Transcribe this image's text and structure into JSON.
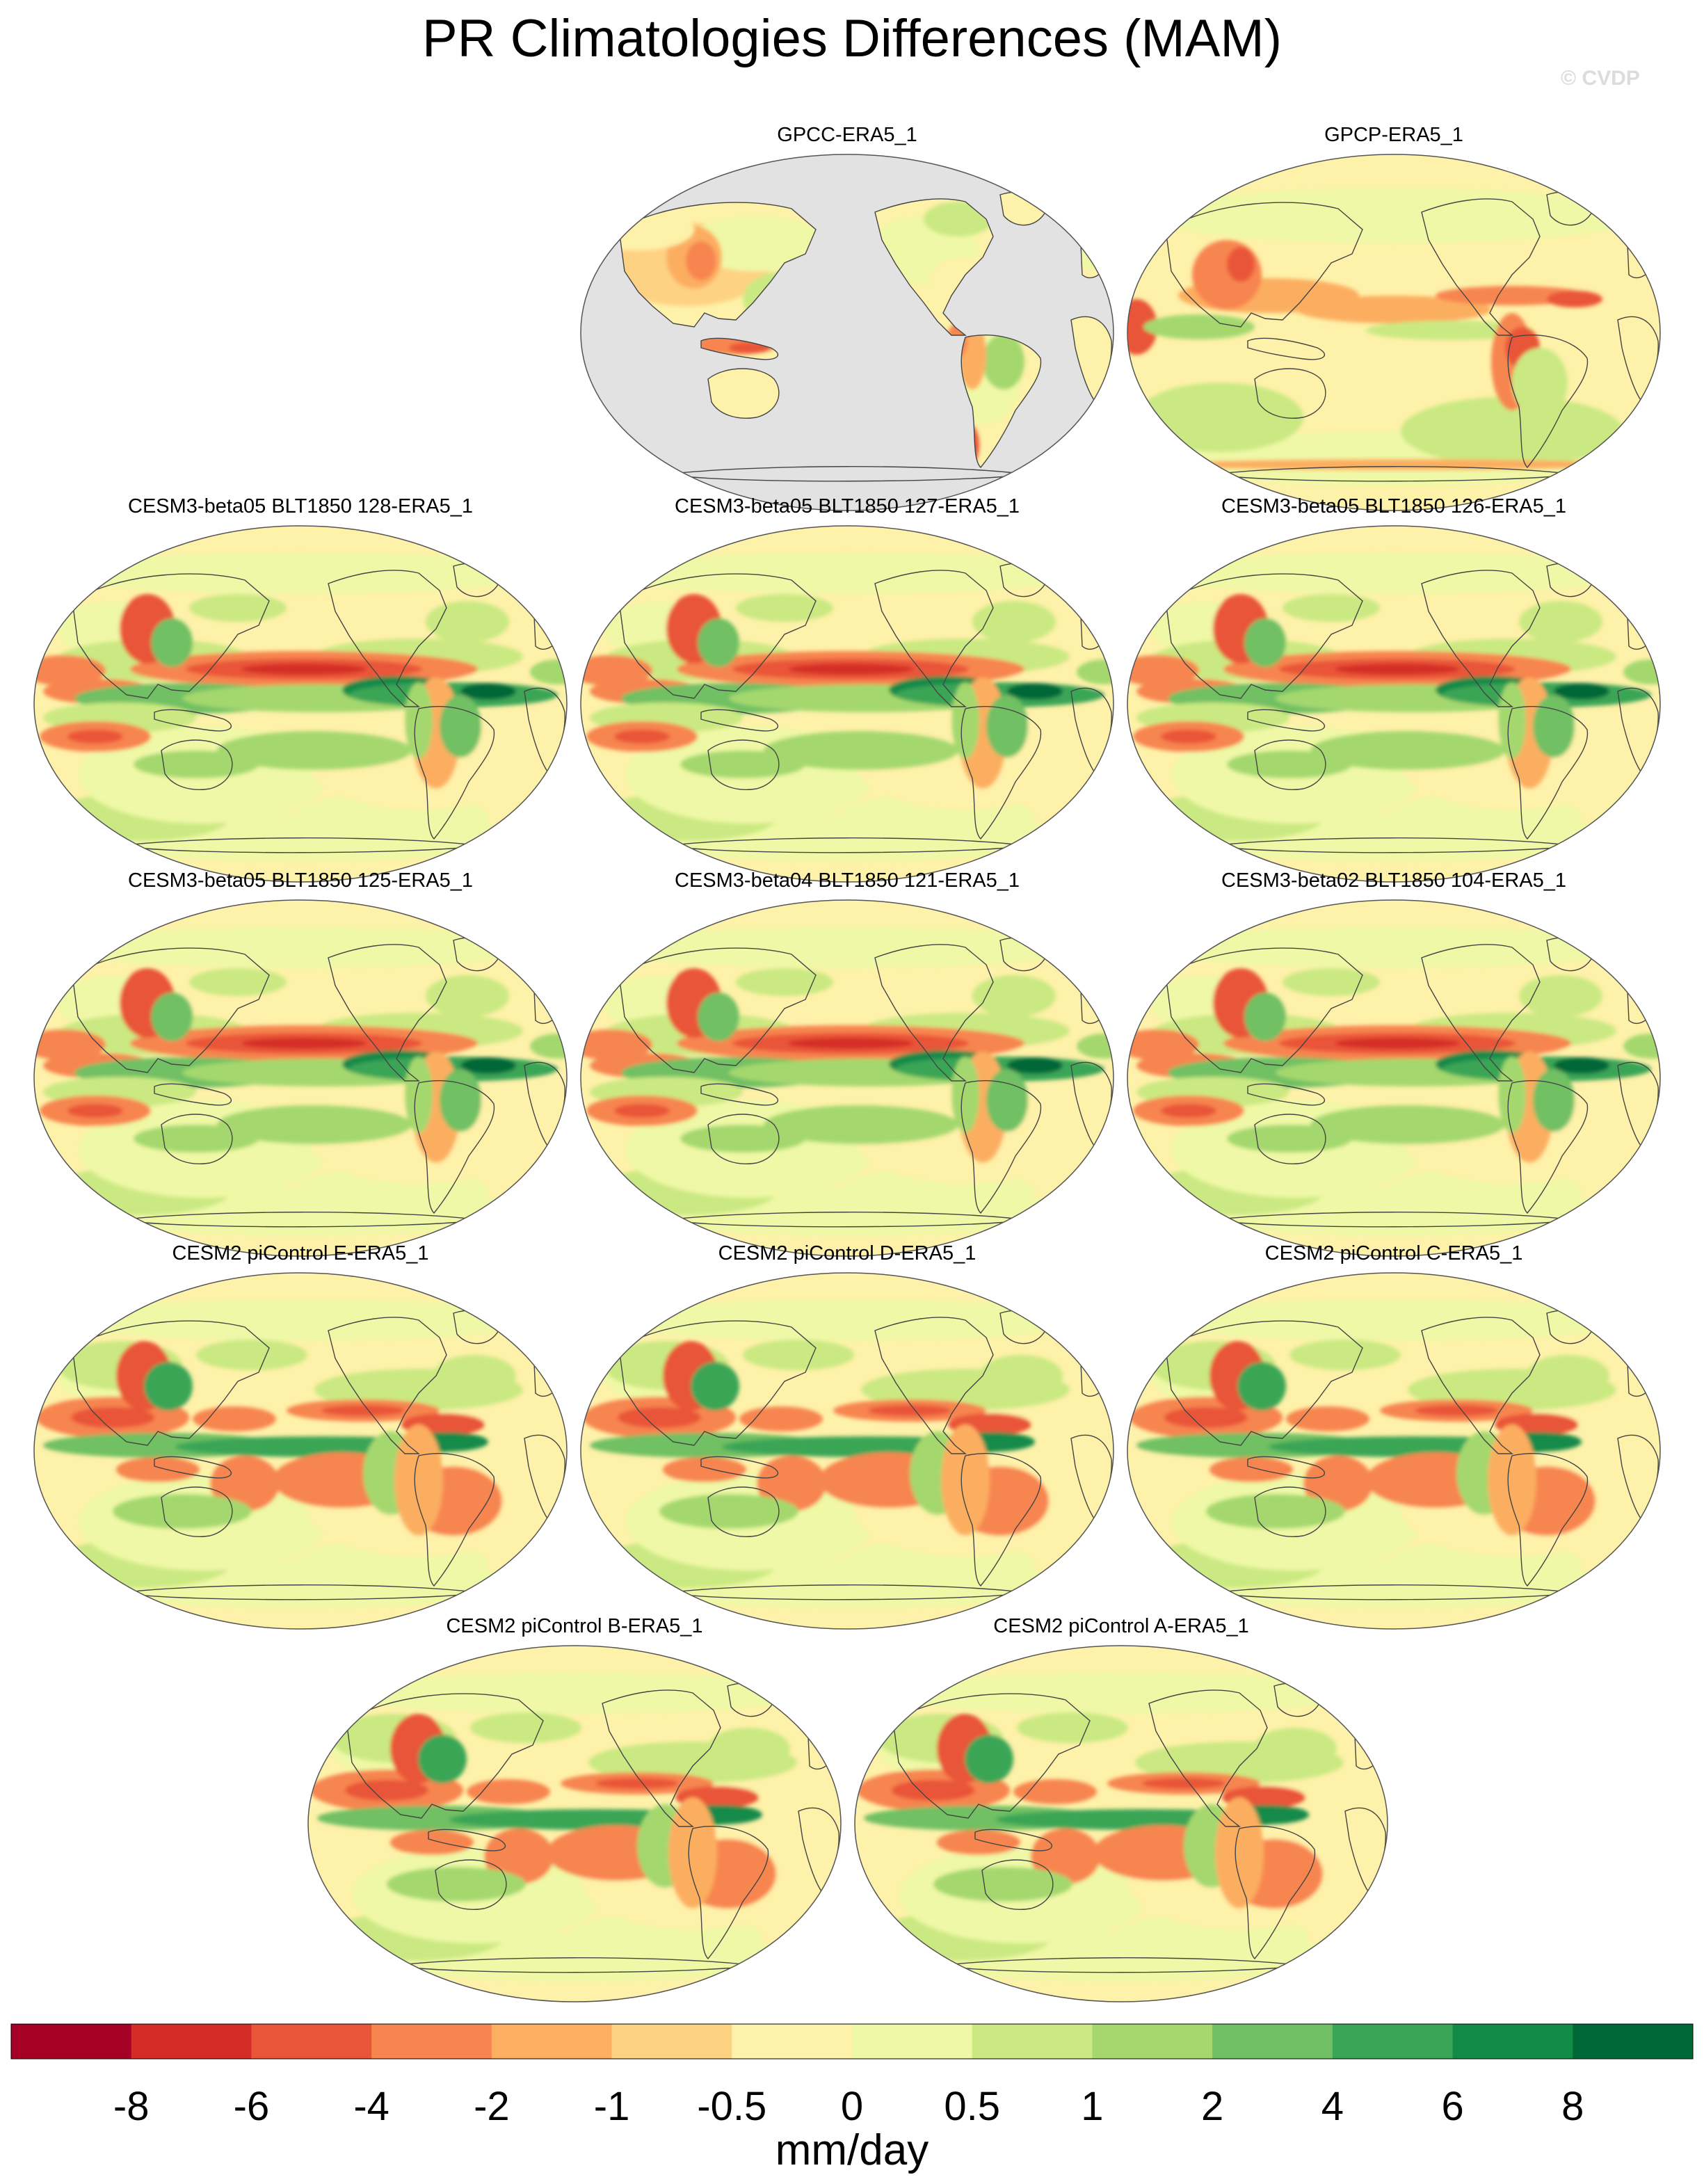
{
  "title": "PR Climatologies Differences (MAM)",
  "watermark": "© CVDP",
  "colorbar": {
    "unit": "mm/day",
    "labels": [
      "-8",
      "-6",
      "-4",
      "-2",
      "-1",
      "-0.5",
      "0",
      "0.5",
      "1",
      "2",
      "4",
      "6",
      "8"
    ],
    "colors": [
      "#a50026",
      "#d42d27",
      "#e95538",
      "#f7854f",
      "#fcae61",
      "#fed283",
      "#fef1a9",
      "#eff8a6",
      "#cbe982",
      "#a4d86e",
      "#71c063",
      "#3aa557",
      "#128a48",
      "#006837"
    ]
  },
  "panels": [
    {
      "title": "GPCC-ERA5_1",
      "type": "land"
    },
    {
      "title": "GPCP-ERA5_1",
      "type": "obs"
    },
    {
      "title": "CESM3-beta05 BLT1850 128-ERA5_1",
      "type": "cesm3"
    },
    {
      "title": "CESM3-beta05 BLT1850 127-ERA5_1",
      "type": "cesm3"
    },
    {
      "title": "CESM3-beta05 BLT1850 126-ERA5_1",
      "type": "cesm3"
    },
    {
      "title": "CESM3-beta05 BLT1850 125-ERA5_1",
      "type": "cesm3"
    },
    {
      "title": "CESM3-beta04 BLT1850 121-ERA5_1",
      "type": "cesm3"
    },
    {
      "title": "CESM3-beta02 BLT1850 104-ERA5_1",
      "type": "cesm3"
    },
    {
      "title": "CESM2 piControl E-ERA5_1",
      "type": "cesm2"
    },
    {
      "title": "CESM2 piControl D-ERA5_1",
      "type": "cesm2"
    },
    {
      "title": "CESM2 piControl C-ERA5_1",
      "type": "cesm2"
    },
    {
      "title": "CESM2 piControl B-ERA5_1",
      "type": "cesm2"
    },
    {
      "title": "CESM2 piControl A-ERA5_1",
      "type": "cesm2"
    }
  ]
}
